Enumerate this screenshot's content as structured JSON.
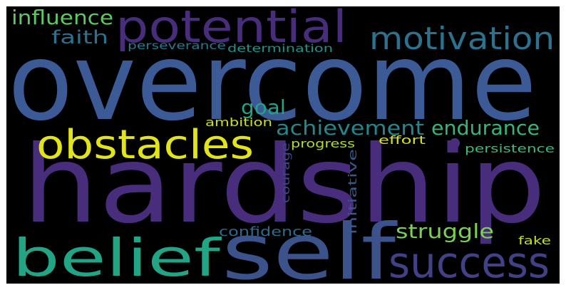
{
  "word_cloud": {
    "words": [
      {
        "text": "overcome",
        "color": "#3b5a96"
      },
      {
        "text": "hardship",
        "color": "#472d7b"
      },
      {
        "text": "potential",
        "color": "#472d7b"
      },
      {
        "text": "motivation",
        "color": "#2c728e"
      },
      {
        "text": "obstacles",
        "color": "#e2e418"
      },
      {
        "text": "belief",
        "color": "#21a585"
      },
      {
        "text": "self",
        "color": "#3b528b"
      },
      {
        "text": "success",
        "color": "#424086"
      },
      {
        "text": "influence",
        "color": "#5ec962"
      },
      {
        "text": "faith",
        "color": "#2c728e"
      },
      {
        "text": "perseverance",
        "color": "#2a788e"
      },
      {
        "text": "determination",
        "color": "#21918c"
      },
      {
        "text": "goal",
        "color": "#20a386"
      },
      {
        "text": "achievement",
        "color": "#23888e"
      },
      {
        "text": "endurance",
        "color": "#35b779"
      },
      {
        "text": "ambition",
        "color": "#c8e020"
      },
      {
        "text": "progress",
        "color": "#addc30"
      },
      {
        "text": "effort",
        "color": "#d8e219"
      },
      {
        "text": "persistence",
        "color": "#3bbb75"
      },
      {
        "text": "courage",
        "color": "#414487"
      },
      {
        "text": "initiative",
        "color": "#38598c"
      },
      {
        "text": "confidence",
        "color": "#306a8e"
      },
      {
        "text": "struggle",
        "color": "#7ad151"
      },
      {
        "text": "fake",
        "color": "#c2df23"
      }
    ],
    "dot_color": "#46337e"
  }
}
